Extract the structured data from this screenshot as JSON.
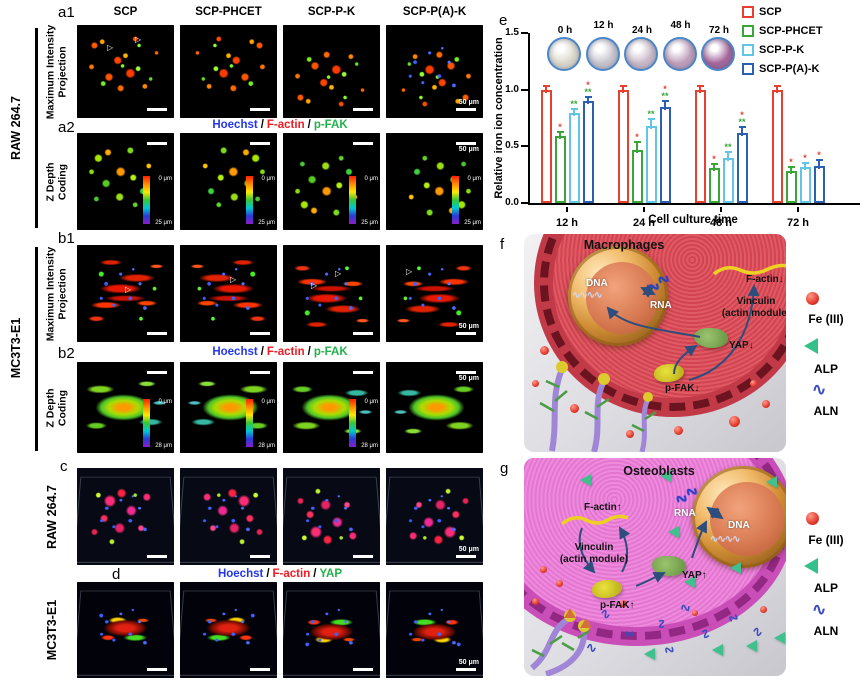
{
  "panel_letters": {
    "a1": "a1",
    "a2": "a2",
    "b1": "b1",
    "b2": "b2",
    "c": "c",
    "d": "d",
    "e": "e",
    "f": "f",
    "g": "g"
  },
  "columns": [
    "SCP",
    "SCP-PHCET",
    "SCP-P-K",
    "SCP-P(A)-K"
  ],
  "side_labels": {
    "raw_ab": "RAW 264.7",
    "mc_ab": "MC3T3-E1",
    "raw_c": "RAW 264.7",
    "mc_d": "MC3T3-E1",
    "mip_line1": "Maximum Intensity",
    "mip_line2": "Projection",
    "zdepth_line1": "Z Depth",
    "zdepth_line2": "Coding"
  },
  "channel_labels": {
    "hoechst": "Hoechst",
    "factin": "F-actin",
    "pfak": "p-FAK",
    "yap": "YAP",
    "sep": "/"
  },
  "scale": {
    "bar_label": "50 μm"
  },
  "depth_bars": {
    "a_top": "0 μm",
    "a_bottom": "25 μm",
    "b_top": "0 μm",
    "b_bottom": "28 μm"
  },
  "chart_data": {
    "type": "bar",
    "categories": [
      "12 h",
      "24 h",
      "48 h",
      "72 h"
    ],
    "series": [
      {
        "name": "SCP",
        "color": "#e8402f",
        "values": [
          1.0,
          1.0,
          1.0,
          1.0
        ],
        "errors": [
          0.03,
          0.02,
          0.03,
          0.02
        ],
        "sig": [
          [],
          [],
          [],
          []
        ]
      },
      {
        "name": "SCP-PHCET",
        "color": "#3aa539",
        "values": [
          0.59,
          0.47,
          0.31,
          0.28
        ],
        "errors": [
          0.02,
          0.06,
          0.03,
          0.02
        ],
        "sig": [
          [
            "*"
          ],
          [
            "*"
          ],
          [
            "*"
          ],
          [
            "*"
          ]
        ]
      },
      {
        "name": "SCP-P-K",
        "color": "#63c5e6",
        "values": [
          0.79,
          0.68,
          0.4,
          0.32
        ],
        "errors": [
          0.02,
          0.05,
          0.04,
          0.02
        ],
        "sig": [
          [
            "**"
          ],
          [
            "**"
          ],
          [
            "**"
          ],
          [
            "*"
          ]
        ]
      },
      {
        "name": "SCP-P(A)-K",
        "color": "#2c5eb2",
        "values": [
          0.9,
          0.85,
          0.62,
          0.33
        ],
        "errors": [
          0.02,
          0.04,
          0.04,
          0.04
        ],
        "sig": [
          [
            "*",
            "**"
          ],
          [
            "*",
            "**"
          ],
          [
            "*",
            "**"
          ],
          [
            "*"
          ]
        ]
      }
    ],
    "ylabel": "Relative iron ion concentration",
    "xlabel": "Cell culture time",
    "ylim": [
      0.0,
      1.5
    ],
    "yticks": [
      "0.0",
      "0.5",
      "1.0",
      "1.5"
    ],
    "legend_position": "top-right",
    "grid": false,
    "dishes": {
      "labels": [
        "0 h",
        "12 h",
        "24 h",
        "48 h",
        "72 h"
      ],
      "colors": [
        "#dbd8cb",
        "#c6c5cf",
        "#c9bac9",
        "#bfa0bc",
        "#a4689c"
      ],
      "rim": "#4a86c8"
    }
  },
  "panel_f": {
    "title": "Macrophages",
    "labels": {
      "dna": "DNA",
      "rna": "RNA",
      "factin": "F-actin↓",
      "vinculin_1": "Vinculin",
      "vinculin_2": "(actin module)",
      "yap": "YAP↓",
      "pfak": "p-FAK↓"
    }
  },
  "panel_g": {
    "title": "Osteoblasts",
    "labels": {
      "dna": "DNA",
      "rna": "RNA",
      "factin": "F-actin↑",
      "vinculin_1": "Vinculin",
      "vinculin_2": "(actin module)",
      "yap": "YAP↑",
      "pfak": "p-FAK↑"
    }
  },
  "fg_legend": {
    "fe": "Fe (III)",
    "alp": "ALP",
    "aln": "ALN"
  }
}
